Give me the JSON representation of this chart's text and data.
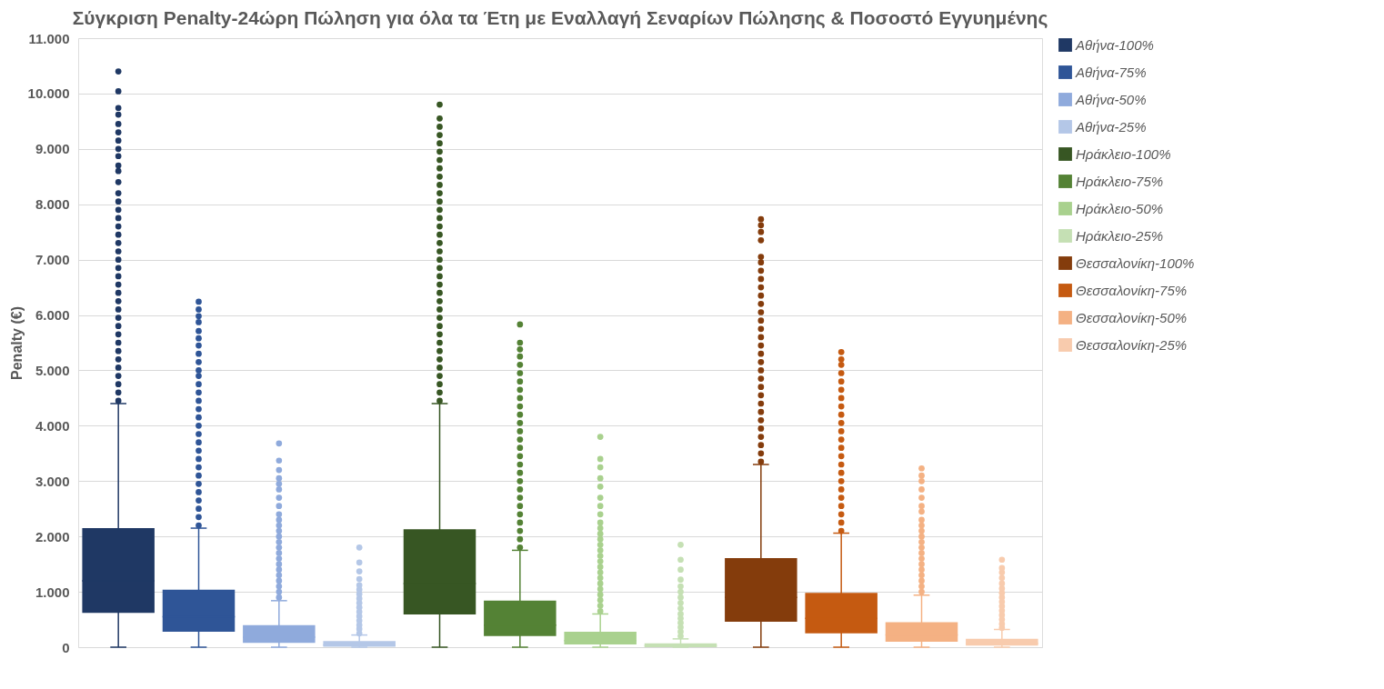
{
  "chart_data": {
    "type": "box",
    "title": "Σύγκριση Penalty-24ώρη Πώληση για όλα τα Έτη με Εναλλαγή Σεναρίων Πώλησης & Ποσοστό Εγγυημένης",
    "ylabel": "Penalty (€)",
    "categories": [
      null
    ],
    "ylim": [
      0,
      11000
    ],
    "yticks": [
      0,
      {
        "value": 1000,
        "label": "1.000"
      },
      {
        "value": 2000,
        "label": "2.000"
      },
      {
        "value": 3000,
        "label": "3.000"
      },
      {
        "value": 4000,
        "label": "4.000"
      },
      {
        "value": 5000,
        "label": "5.000"
      },
      {
        "value": 6000,
        "label": "6.000"
      },
      {
        "value": 7000,
        "label": "7.000"
      },
      {
        "value": 8000,
        "label": "8.000"
      },
      {
        "value": 9000,
        "label": "9.000"
      },
      {
        "value": 10000,
        "label": "10.000"
      },
      {
        "value": 11000,
        "label": "11.000"
      }
    ],
    "grid": "y",
    "legend": "right",
    "marker": "circle",
    "series": [
      {
        "name": "Αθήνα-100%",
        "color": "#1f3864",
        "boxes": [
          {
            "low": 0,
            "q1": 620,
            "median": 1200,
            "q3": 2150,
            "high": 4400,
            "outliers": [
              4450,
              4600,
              4750,
              4900,
              5050,
              5200,
              5350,
              5500,
              5650,
              5800,
              5950,
              6100,
              6250,
              6400,
              6550,
              6700,
              6850,
              7000,
              7150,
              7300,
              7450,
              7600,
              7750,
              7900,
              8050,
              8200,
              8400,
              8600,
              8700,
              8870,
              9000,
              9150,
              9300,
              9450,
              9620,
              9740,
              10040,
              10400
            ]
          }
        ]
      },
      {
        "name": "Αθήνα-75%",
        "color": "#2f5597",
        "boxes": [
          {
            "low": 0,
            "q1": 280,
            "median": 550,
            "q3": 1040,
            "high": 2150,
            "outliers": [
              2200,
              2350,
              2500,
              2650,
              2800,
              2950,
              3100,
              3250,
              3400,
              3550,
              3700,
              3850,
              4000,
              4150,
              4300,
              4450,
              4600,
              4750,
              4900,
              5000,
              5150,
              5300,
              5450,
              5580,
              5710,
              5870,
              5980,
              6100,
              6240
            ]
          }
        ]
      },
      {
        "name": "Αθήνα-50%",
        "color": "#8faadc",
        "boxes": [
          {
            "low": 0,
            "q1": 80,
            "median": 180,
            "q3": 400,
            "high": 840,
            "outliers": [
              900,
              1000,
              1100,
              1200,
              1300,
              1400,
              1500,
              1600,
              1700,
              1800,
              1900,
              2000,
              2100,
              2200,
              2300,
              2400,
              2550,
              2700,
              2850,
              2950,
              3050,
              3200,
              3370,
              3680
            ]
          }
        ]
      },
      {
        "name": "Αθήνα-25%",
        "color": "#b4c7e7",
        "boxes": [
          {
            "low": 0,
            "q1": 10,
            "median": 40,
            "q3": 110,
            "high": 220,
            "outliers": [
              250,
              330,
              400,
              480,
              560,
              640,
              720,
              800,
              880,
              960,
              1040,
              1120,
              1230,
              1370,
              1530,
              1800
            ]
          }
        ]
      },
      {
        "name": "Ηράκλειο-100%",
        "color": "#375623",
        "boxes": [
          {
            "low": 0,
            "q1": 590,
            "median": 1150,
            "q3": 2130,
            "high": 4400,
            "outliers": [
              4450,
              4600,
              4750,
              4900,
              5050,
              5200,
              5350,
              5500,
              5650,
              5800,
              5950,
              6100,
              6250,
              6400,
              6550,
              6700,
              6850,
              7000,
              7150,
              7300,
              7450,
              7600,
              7750,
              7900,
              8050,
              8200,
              8350,
              8500,
              8650,
              8800,
              8950,
              9100,
              9250,
              9400,
              9550,
              9800
            ]
          }
        ]
      },
      {
        "name": "Ηράκλειο-75%",
        "color": "#548235",
        "boxes": [
          {
            "low": 0,
            "q1": 200,
            "median": 400,
            "q3": 840,
            "high": 1750,
            "outliers": [
              1800,
              1950,
              2100,
              2250,
              2400,
              2550,
              2700,
              2850,
              3000,
              3150,
              3300,
              3450,
              3600,
              3750,
              3900,
              4050,
              4200,
              4350,
              4500,
              4650,
              4800,
              4950,
              5100,
              5250,
              5380,
              5500,
              5830
            ]
          }
        ]
      },
      {
        "name": "Ηράκλειο-50%",
        "color": "#a9d18e",
        "boxes": [
          {
            "low": 0,
            "q1": 50,
            "median": 120,
            "q3": 280,
            "high": 600,
            "outliers": [
              650,
              750,
              850,
              950,
              1050,
              1150,
              1250,
              1350,
              1450,
              1550,
              1650,
              1750,
              1850,
              1950,
              2050,
              2150,
              2250,
              2400,
              2550,
              2700,
              2900,
              3050,
              3250,
              3400,
              3800
            ]
          }
        ]
      },
      {
        "name": "Ηράκλειο-25%",
        "color": "#c5e0b4",
        "boxes": [
          {
            "low": 0,
            "q1": 0,
            "median": 25,
            "q3": 70,
            "high": 150,
            "outliers": [
              200,
              280,
              360,
              440,
              520,
              600,
              700,
              800,
              900,
              1000,
              1100,
              1220,
              1400,
              1580,
              1850
            ]
          }
        ]
      },
      {
        "name": "Θεσσαλονίκη-100%",
        "color": "#843c0c",
        "boxes": [
          {
            "low": 0,
            "q1": 460,
            "median": 900,
            "q3": 1610,
            "high": 3300,
            "outliers": [
              3350,
              3500,
              3650,
              3800,
              3950,
              4100,
              4250,
              4400,
              4550,
              4700,
              4850,
              5000,
              5150,
              5300,
              5450,
              5600,
              5750,
              5900,
              6050,
              6200,
              6350,
              6500,
              6650,
              6800,
              6950,
              7050,
              7350,
              7500,
              7620,
              7730
            ]
          }
        ]
      },
      {
        "name": "Θεσσαλονίκη-75%",
        "color": "#c55a11",
        "boxes": [
          {
            "low": 0,
            "q1": 250,
            "median": 520,
            "q3": 980,
            "high": 2060,
            "outliers": [
              2100,
              2250,
              2400,
              2550,
              2700,
              2850,
              3000,
              3150,
              3300,
              3450,
              3600,
              3750,
              3900,
              4050,
              4200,
              4350,
              4500,
              4650,
              4800,
              4950,
              5100,
              5200,
              5330
            ]
          }
        ]
      },
      {
        "name": "Θεσσαλονίκη-50%",
        "color": "#f4b183",
        "boxes": [
          {
            "low": 0,
            "q1": 100,
            "median": 220,
            "q3": 450,
            "high": 940,
            "outliers": [
              1000,
              1100,
              1200,
              1300,
              1400,
              1500,
              1600,
              1700,
              1800,
              1900,
              2000,
              2100,
              2200,
              2300,
              2450,
              2550,
              2700,
              2850,
              3000,
              3100,
              3230
            ]
          }
        ]
      },
      {
        "name": "Θεσσαλονίκη-25%",
        "color": "#f8cbad",
        "boxes": [
          {
            "low": 0,
            "q1": 30,
            "median": 70,
            "q3": 150,
            "high": 320,
            "outliers": [
              350,
              420,
              500,
              580,
              660,
              740,
              820,
              900,
              980,
              1060,
              1150,
              1250,
              1350,
              1430,
              1580
            ]
          }
        ]
      }
    ]
  }
}
